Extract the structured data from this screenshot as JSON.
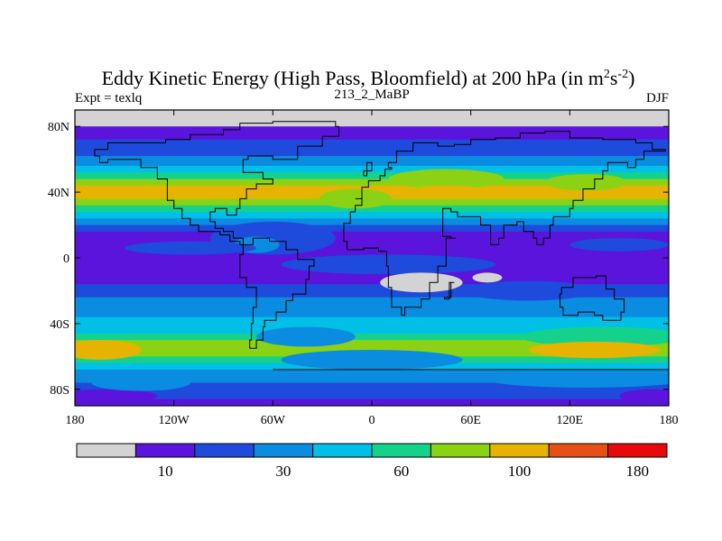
{
  "chart_data": {
    "type": "heatmap",
    "title": "Eddy Kinetic Energy (High Pass, Bloomfield) at 200 hPa (in m",
    "title_units": {
      "sup1": "2",
      "mid": "s",
      "sup2": "-2",
      "close": ")"
    },
    "subtitle_left": "Expt = texlq",
    "subtitle_center": "213_2_MaBP",
    "subtitle_right": "DJF",
    "x_ticks": [
      {
        "value": -180,
        "label": "180"
      },
      {
        "value": -120,
        "label": "120W"
      },
      {
        "value": -60,
        "label": "60W"
      },
      {
        "value": 0,
        "label": "0"
      },
      {
        "value": 60,
        "label": "60E"
      },
      {
        "value": 120,
        "label": "120E"
      },
      {
        "value": 180,
        "label": "180"
      }
    ],
    "y_ticks": [
      {
        "value": 80,
        "label": "80N"
      },
      {
        "value": 40,
        "label": "40N"
      },
      {
        "value": 0,
        "label": "0"
      },
      {
        "value": -40,
        "label": "40S"
      },
      {
        "value": -80,
        "label": "80S"
      }
    ],
    "xlim": [
      -180,
      180
    ],
    "ylim": [
      -90,
      90
    ],
    "colorbar": {
      "colors": [
        "#d3d3d3",
        "#5a14dc",
        "#1e4bdc",
        "#0a8ce0",
        "#00c0e8",
        "#14d28c",
        "#8cd214",
        "#e6b400",
        "#e65014",
        "#e60a0a"
      ],
      "labels": [
        {
          "index": 1,
          "text": "10"
        },
        {
          "index": 3,
          "text": "30"
        },
        {
          "index": 5,
          "text": "60"
        },
        {
          "index": 7,
          "text": "100"
        },
        {
          "index": 9,
          "text": "180"
        }
      ]
    },
    "bands": [
      {
        "lat": [
          80,
          90
        ],
        "level": 0
      },
      {
        "lat": [
          72,
          80
        ],
        "level": 1
      },
      {
        "lat": [
          62,
          72
        ],
        "level": 2
      },
      {
        "lat": [
          56,
          62
        ],
        "level": 3
      },
      {
        "lat": [
          52,
          56
        ],
        "level": 4
      },
      {
        "lat": [
          48,
          52
        ],
        "level": 5
      },
      {
        "lat": [
          44,
          48
        ],
        "level": 6
      },
      {
        "lat": [
          36,
          44
        ],
        "level": 7
      },
      {
        "lat": [
          32,
          36
        ],
        "level": 6
      },
      {
        "lat": [
          28,
          32
        ],
        "level": 5
      },
      {
        "lat": [
          24,
          28
        ],
        "level": 4
      },
      {
        "lat": [
          20,
          24
        ],
        "level": 3
      },
      {
        "lat": [
          16,
          20
        ],
        "level": 2
      },
      {
        "lat": [
          -16,
          16
        ],
        "level": 1
      },
      {
        "lat": [
          -24,
          -16
        ],
        "level": 2
      },
      {
        "lat": [
          -36,
          -24
        ],
        "level": 3
      },
      {
        "lat": [
          -46,
          -36
        ],
        "level": 4
      },
      {
        "lat": [
          -50,
          -46
        ],
        "level": 5
      },
      {
        "lat": [
          -60,
          -50
        ],
        "level": 6
      },
      {
        "lat": [
          -64,
          -60
        ],
        "level": 5
      },
      {
        "lat": [
          -68,
          -64
        ],
        "level": 4
      },
      {
        "lat": [
          -76,
          -68
        ],
        "level": 3
      },
      {
        "lat": [
          -86,
          -76
        ],
        "level": 2
      },
      {
        "lat": [
          -90,
          -86
        ],
        "level": 1
      }
    ],
    "patches": [
      {
        "lon": -10,
        "lat": 36,
        "rx": 22,
        "ry": 6,
        "level": 6
      },
      {
        "lon": 45,
        "lat": 48,
        "rx": 35,
        "ry": 6,
        "level": 6
      },
      {
        "lon": 45,
        "lat": 40,
        "rx": 25,
        "ry": 4,
        "level": 7
      },
      {
        "lon": 130,
        "lat": 46,
        "rx": 25,
        "ry": 5,
        "level": 6
      },
      {
        "lon": -60,
        "lat": 12,
        "rx": 38,
        "ry": 10,
        "level": 2
      },
      {
        "lon": -70,
        "lat": 8,
        "rx": 14,
        "ry": 5,
        "level": 3
      },
      {
        "lon": 10,
        "lat": -4,
        "rx": 65,
        "ry": 6,
        "level": 2
      },
      {
        "lon": -110,
        "lat": 6,
        "rx": 40,
        "ry": 4,
        "level": 2
      },
      {
        "lon": 150,
        "lat": 8,
        "rx": 30,
        "ry": 4,
        "level": 2
      },
      {
        "lon": 95,
        "lat": -20,
        "rx": 40,
        "ry": 6,
        "level": 2
      },
      {
        "lon": 140,
        "lat": -48,
        "rx": 50,
        "ry": 6,
        "level": 5
      },
      {
        "lon": -165,
        "lat": -56,
        "rx": 25,
        "ry": 6,
        "level": 7
      },
      {
        "lon": 135,
        "lat": -56,
        "rx": 40,
        "ry": 5,
        "level": 7
      },
      {
        "lon": 0,
        "lat": -62,
        "rx": 55,
        "ry": 6,
        "level": 3
      },
      {
        "lon": -40,
        "lat": -48,
        "rx": 30,
        "ry": 6,
        "level": 3
      },
      {
        "lon": -160,
        "lat": -84,
        "rx": 30,
        "ry": 4,
        "level": 1
      },
      {
        "lon": 170,
        "lat": -84,
        "rx": 20,
        "ry": 4,
        "level": 1
      },
      {
        "lon": 130,
        "lat": -74,
        "rx": 60,
        "ry": 5,
        "level": 3
      },
      {
        "lon": -140,
        "lat": -76,
        "rx": 30,
        "ry": 5,
        "level": 3
      },
      {
        "lon": 30,
        "lat": -15,
        "rx": 25,
        "ry": 6,
        "level": 0
      },
      {
        "lon": 70,
        "lat": -12,
        "rx": 9,
        "ry": 3,
        "level": 0
      },
      {
        "lon": -140,
        "lat": 86,
        "rx": 40,
        "ry": 3,
        "level": 0
      }
    ],
    "coastlines": [
      [
        [
          -168,
          66
        ],
        [
          -160,
          70
        ],
        [
          -140,
          70
        ],
        [
          -125,
          72
        ],
        [
          -110,
          75
        ],
        [
          -90,
          78
        ],
        [
          -80,
          82
        ],
        [
          -60,
          83
        ],
        [
          -40,
          83
        ],
        [
          -22,
          80
        ],
        [
          -20,
          74
        ],
        [
          -30,
          68
        ],
        [
          -45,
          60
        ],
        [
          -60,
          62
        ],
        [
          -75,
          60
        ],
        [
          -78,
          52
        ],
        [
          -66,
          48
        ],
        [
          -60,
          45
        ],
        [
          -70,
          42
        ],
        [
          -76,
          36
        ],
        [
          -80,
          30
        ],
        [
          -82,
          26
        ],
        [
          -88,
          30
        ],
        [
          -95,
          28
        ],
        [
          -98,
          22
        ],
        [
          -95,
          18
        ],
        [
          -90,
          16
        ],
        [
          -84,
          12
        ],
        [
          -78,
          8
        ],
        [
          -80,
          10
        ],
        [
          -86,
          14
        ],
        [
          -92,
          16
        ],
        [
          -105,
          20
        ],
        [
          -110,
          24
        ],
        [
          -115,
          30
        ],
        [
          -120,
          35
        ],
        [
          -124,
          40
        ],
        [
          -124,
          48
        ],
        [
          -130,
          55
        ],
        [
          -140,
          60
        ],
        [
          -150,
          60
        ],
        [
          -160,
          58
        ],
        [
          -165,
          62
        ],
        [
          -168,
          66
        ]
      ],
      [
        [
          -78,
          8
        ],
        [
          -72,
          12
        ],
        [
          -62,
          10
        ],
        [
          -52,
          5
        ],
        [
          -45,
          -1
        ],
        [
          -35,
          -5
        ],
        [
          -38,
          -13
        ],
        [
          -40,
          -22
        ],
        [
          -48,
          -26
        ],
        [
          -52,
          -33
        ],
        [
          -58,
          -38
        ],
        [
          -65,
          -42
        ],
        [
          -66,
          -50
        ],
        [
          -70,
          -55
        ],
        [
          -74,
          -50
        ],
        [
          -73,
          -40
        ],
        [
          -72,
          -30
        ],
        [
          -70,
          -18
        ],
        [
          -76,
          -12
        ],
        [
          -80,
          -4
        ],
        [
          -80,
          2
        ],
        [
          -78,
          8
        ]
      ],
      [
        [
          -10,
          36
        ],
        [
          -6,
          43
        ],
        [
          -2,
          47
        ],
        [
          5,
          50
        ],
        [
          8,
          54
        ],
        [
          12,
          55
        ],
        [
          10,
          58
        ],
        [
          15,
          65
        ],
        [
          25,
          70
        ],
        [
          40,
          68
        ],
        [
          50,
          69
        ],
        [
          60,
          72
        ],
        [
          75,
          73
        ],
        [
          90,
          76
        ],
        [
          105,
          77
        ],
        [
          120,
          73
        ],
        [
          140,
          72
        ],
        [
          160,
          70
        ],
        [
          170,
          66
        ],
        [
          178,
          65
        ],
        [
          165,
          60
        ],
        [
          160,
          55
        ],
        [
          155,
          58
        ],
        [
          143,
          53
        ],
        [
          140,
          48
        ],
        [
          135,
          42
        ],
        [
          128,
          35
        ],
        [
          122,
          30
        ],
        [
          120,
          25
        ],
        [
          110,
          20
        ],
        [
          108,
          12
        ],
        [
          104,
          8
        ],
        [
          100,
          12
        ],
        [
          98,
          16
        ],
        [
          92,
          22
        ],
        [
          88,
          20
        ],
        [
          80,
          12
        ],
        [
          77,
          8
        ],
        [
          72,
          20
        ],
        [
          66,
          25
        ],
        [
          57,
          25
        ],
        [
          52,
          28
        ],
        [
          48,
          30
        ],
        [
          43,
          13
        ],
        [
          48,
          12
        ],
        [
          51,
          12
        ],
        [
          45,
          -5
        ],
        [
          40,
          -15
        ],
        [
          35,
          -25
        ],
        [
          30,
          -30
        ],
        [
          20,
          -35
        ],
        [
          18,
          -30
        ],
        [
          12,
          -18
        ],
        [
          10,
          -5
        ],
        [
          9,
          4
        ],
        [
          4,
          6
        ],
        [
          -5,
          5
        ],
        [
          -15,
          10
        ],
        [
          -17,
          15
        ],
        [
          -17,
          21
        ],
        [
          -13,
          28
        ],
        [
          -10,
          32
        ],
        [
          -6,
          36
        ],
        [
          -10,
          36
        ]
      ],
      [
        [
          115,
          -22
        ],
        [
          114,
          -30
        ],
        [
          116,
          -35
        ],
        [
          125,
          -33
        ],
        [
          135,
          -35
        ],
        [
          140,
          -38
        ],
        [
          148,
          -38
        ],
        [
          151,
          -33
        ],
        [
          153,
          -25
        ],
        [
          147,
          -19
        ],
        [
          142,
          -11
        ],
        [
          136,
          -12
        ],
        [
          130,
          -12
        ],
        [
          122,
          -18
        ],
        [
          115,
          -22
        ]
      ],
      [
        [
          44,
          -25
        ],
        [
          47,
          -15
        ],
        [
          50,
          -15
        ],
        [
          48,
          -24
        ],
        [
          44,
          -25
        ]
      ],
      [
        [
          -5,
          50
        ],
        [
          -3,
          58
        ],
        [
          0,
          53
        ],
        [
          -5,
          50
        ]
      ]
    ],
    "antarctic_line": {
      "lat": -68,
      "lon_range": [
        -60,
        180
      ]
    }
  }
}
